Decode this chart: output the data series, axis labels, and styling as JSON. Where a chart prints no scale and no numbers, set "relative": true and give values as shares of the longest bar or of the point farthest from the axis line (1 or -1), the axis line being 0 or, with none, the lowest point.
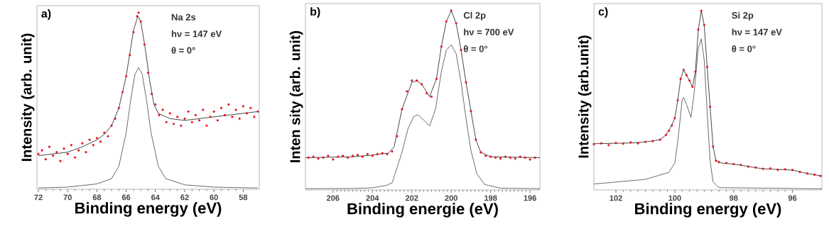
{
  "chart_data": [
    {
      "type": "scatter",
      "relative": true,
      "xlabel": "Binding energy (eV)",
      "ylabel": "Intensity (arb. unit)",
      "xlim": [
        72.1,
        56.9
      ],
      "xticks": [
        72,
        70,
        68,
        66,
        64,
        62,
        60,
        58
      ],
      "annotations": [
        "a)",
        "Na 2s",
        "hν = 147 eV",
        "θ = 0°"
      ],
      "series": [
        {
          "type": "line",
          "color": "#5a5a5a",
          "x": [
            72,
            70,
            68,
            67,
            66.5,
            66,
            65.7,
            65.4,
            65.15,
            64.9,
            64.6,
            64.3,
            63.8,
            63.3,
            62,
            60,
            57
          ],
          "values": [
            0.007,
            0.012,
            0.03,
            0.06,
            0.13,
            0.32,
            0.5,
            0.65,
            0.69,
            0.65,
            0.5,
            0.32,
            0.13,
            0.06,
            0.025,
            0.012,
            0.007
          ]
        },
        {
          "marker": "circle",
          "color": "#e3141c",
          "x": [
            72.0,
            71.75,
            71.5,
            71.25,
            71.0,
            70.75,
            70.5,
            70.25,
            70.0,
            69.75,
            69.5,
            69.25,
            69.0,
            68.75,
            68.5,
            68.25,
            68.0,
            67.75,
            67.5,
            67.25,
            67.0,
            66.75,
            66.5,
            66.25,
            66.0,
            65.75,
            65.5,
            65.25,
            65.15,
            65.0,
            64.75,
            64.5,
            64.25,
            64.0,
            63.75,
            63.5,
            63.25,
            63.0,
            62.75,
            62.5,
            62.25,
            62.0,
            61.75,
            61.5,
            61.25,
            61.0,
            60.75,
            60.5,
            60.25,
            60.0,
            59.75,
            59.5,
            59.25,
            59.0,
            58.75,
            58.5,
            58.25,
            58.0,
            57.75,
            57.5,
            57.25,
            57.0
          ],
          "values": [
            0.2,
            0.22,
            0.17,
            0.24,
            0.19,
            0.21,
            0.16,
            0.23,
            0.2,
            0.25,
            0.18,
            0.22,
            0.26,
            0.21,
            0.28,
            0.25,
            0.29,
            0.27,
            0.32,
            0.3,
            0.36,
            0.4,
            0.46,
            0.55,
            0.64,
            0.76,
            0.89,
            0.98,
            1.0,
            0.95,
            0.82,
            0.66,
            0.54,
            0.48,
            0.42,
            0.45,
            0.38,
            0.43,
            0.37,
            0.41,
            0.36,
            0.4,
            0.44,
            0.38,
            0.42,
            0.39,
            0.45,
            0.36,
            0.41,
            0.44,
            0.39,
            0.46,
            0.42,
            0.48,
            0.41,
            0.45,
            0.4,
            0.47,
            0.43,
            0.46,
            0.41,
            0.44
          ]
        },
        {
          "type": "line",
          "color": "#333333",
          "x": [
            72,
            71,
            70,
            69,
            68,
            67.5,
            67,
            66.5,
            66,
            65.5,
            65.2,
            65,
            64.7,
            64.4,
            64.1,
            63.8,
            63,
            62,
            61,
            60,
            59,
            58,
            57
          ],
          "values": [
            0.19,
            0.2,
            0.21,
            0.24,
            0.28,
            0.31,
            0.36,
            0.46,
            0.64,
            0.9,
            0.98,
            0.95,
            0.8,
            0.62,
            0.48,
            0.43,
            0.4,
            0.39,
            0.4,
            0.41,
            0.42,
            0.43,
            0.44
          ]
        }
      ]
    },
    {
      "type": "scatter",
      "relative": true,
      "xlabel": "Binding energie (eV)",
      "ylabel": "Inten sity (arb. unit)",
      "xlim": [
        207.4,
        195.5
      ],
      "xticks": [
        206,
        204,
        202,
        200,
        198,
        196
      ],
      "annotations": [
        "b)",
        "Cl 2p",
        "hν = 700 eV",
        "θ = 0°"
      ],
      "series": [
        {
          "type": "line",
          "color": "#5a5a5a",
          "x": [
            207.4,
            205,
            204,
            203.3,
            203,
            202.5,
            202.2,
            201.9,
            201.7,
            201.4,
            201.1,
            200.8,
            200.5,
            200.25,
            200,
            199.75,
            199.5,
            199.25,
            199,
            198.7,
            198.3,
            197.5,
            195.5
          ],
          "values": [
            0.007,
            0.008,
            0.012,
            0.025,
            0.04,
            0.21,
            0.34,
            0.41,
            0.42,
            0.39,
            0.357,
            0.45,
            0.66,
            0.78,
            0.81,
            0.76,
            0.6,
            0.4,
            0.22,
            0.09,
            0.03,
            0.01,
            0.007
          ]
        },
        {
          "marker": "circle",
          "color": "#e3141c",
          "x": [
            207.25,
            207,
            206.75,
            206.5,
            206.25,
            206,
            205.75,
            205.5,
            205.25,
            205,
            204.75,
            204.5,
            204.25,
            204,
            203.75,
            203.5,
            203.25,
            203,
            202.75,
            202.5,
            202.25,
            202,
            201.75,
            201.5,
            201.25,
            201,
            200.75,
            200.5,
            200.25,
            200,
            199.75,
            199.5,
            199.25,
            199,
            198.75,
            198.5,
            198.25,
            198,
            197.75,
            197.5,
            197.25,
            197,
            196.75,
            196.5,
            196.25,
            196,
            195.75
          ],
          "values": [
            0.18,
            0.185,
            0.175,
            0.18,
            0.19,
            0.17,
            0.185,
            0.19,
            0.18,
            0.19,
            0.195,
            0.185,
            0.2,
            0.19,
            0.2,
            0.205,
            0.2,
            0.215,
            0.3,
            0.45,
            0.55,
            0.61,
            0.61,
            0.59,
            0.54,
            0.52,
            0.62,
            0.8,
            0.94,
            1.0,
            0.93,
            0.78,
            0.6,
            0.44,
            0.28,
            0.21,
            0.19,
            0.185,
            0.18,
            0.175,
            0.185,
            0.18,
            0.175,
            0.185,
            0.18,
            0.17,
            0.18
          ]
        },
        {
          "type": "line",
          "color": "#333333",
          "x": [
            207.4,
            205,
            204,
            203.2,
            202.9,
            202.5,
            202,
            201.75,
            201.5,
            201.1,
            200.75,
            200.5,
            200.25,
            200,
            199.75,
            199.5,
            199.25,
            199,
            198.75,
            198.5,
            198,
            195.5
          ],
          "values": [
            0.18,
            0.185,
            0.195,
            0.205,
            0.24,
            0.45,
            0.6,
            0.61,
            0.59,
            0.52,
            0.62,
            0.8,
            0.94,
            1.0,
            0.93,
            0.78,
            0.6,
            0.44,
            0.28,
            0.21,
            0.185,
            0.18
          ]
        }
      ]
    },
    {
      "type": "scatter",
      "relative": true,
      "xlabel": "Binding energy (eV)",
      "ylabel": "Intensity (arb.unit)",
      "xlim": [
        102.75,
        95.0
      ],
      "xticks": [
        102,
        100,
        98,
        96
      ],
      "annotations": [
        "c)",
        "Si 2p",
        "hν = 147 eV",
        "θ = 0°"
      ],
      "series": [
        {
          "type": "line",
          "color": "#5a5a5a",
          "x": [
            102.75,
            101,
            100.2,
            100,
            99.9,
            99.75,
            99.7,
            99.6,
            99.45,
            99.35,
            99.2,
            99.1,
            99.0,
            98.9,
            98.8,
            98.7,
            98.5,
            95.0
          ],
          "values": [
            0.033,
            0.059,
            0.098,
            0.15,
            0.268,
            0.5,
            0.516,
            0.477,
            0.405,
            0.53,
            0.79,
            0.843,
            0.725,
            0.438,
            0.163,
            0.046,
            0.013,
            0.006
          ]
        },
        {
          "marker": "circle",
          "color": "#e3141c",
          "x": [
            102.75,
            102.5,
            102.25,
            102,
            101.75,
            101.5,
            101.25,
            101,
            100.75,
            100.5,
            100.3,
            100.2,
            100.1,
            100.0,
            99.9,
            99.8,
            99.7,
            99.6,
            99.5,
            99.4,
            99.3,
            99.2,
            99.1,
            99.0,
            98.9,
            98.8,
            98.7,
            98.6,
            98.5,
            98.25,
            98,
            97.75,
            97.5,
            97.25,
            97,
            96.75,
            96.5,
            96.25,
            96,
            95.75,
            95.5,
            95.25,
            95.05
          ],
          "values": [
            0.255,
            0.26,
            0.25,
            0.262,
            0.258,
            0.265,
            0.26,
            0.268,
            0.272,
            0.28,
            0.307,
            0.33,
            0.36,
            0.4,
            0.5,
            0.62,
            0.67,
            0.64,
            0.61,
            0.575,
            0.66,
            0.895,
            1.0,
            0.92,
            0.686,
            0.464,
            0.242,
            0.163,
            0.155,
            0.15,
            0.144,
            0.14,
            0.13,
            0.125,
            0.118,
            0.12,
            0.112,
            0.115,
            0.111,
            0.1,
            0.092,
            0.085,
            0.078
          ]
        },
        {
          "type": "line",
          "color": "#333333",
          "x": [
            102.75,
            101.5,
            101,
            100.5,
            100.3,
            100.1,
            100.0,
            99.9,
            99.8,
            99.7,
            99.6,
            99.5,
            99.4,
            99.3,
            99.2,
            99.1,
            99.0,
            98.9,
            98.8,
            98.7,
            98.6,
            98.4,
            98,
            97,
            96,
            95.5,
            95.0
          ],
          "values": [
            0.258,
            0.262,
            0.268,
            0.28,
            0.307,
            0.36,
            0.4,
            0.5,
            0.62,
            0.67,
            0.64,
            0.61,
            0.575,
            0.66,
            0.895,
            1.0,
            0.92,
            0.686,
            0.464,
            0.242,
            0.163,
            0.15,
            0.144,
            0.118,
            0.111,
            0.092,
            0.078
          ]
        }
      ]
    }
  ]
}
